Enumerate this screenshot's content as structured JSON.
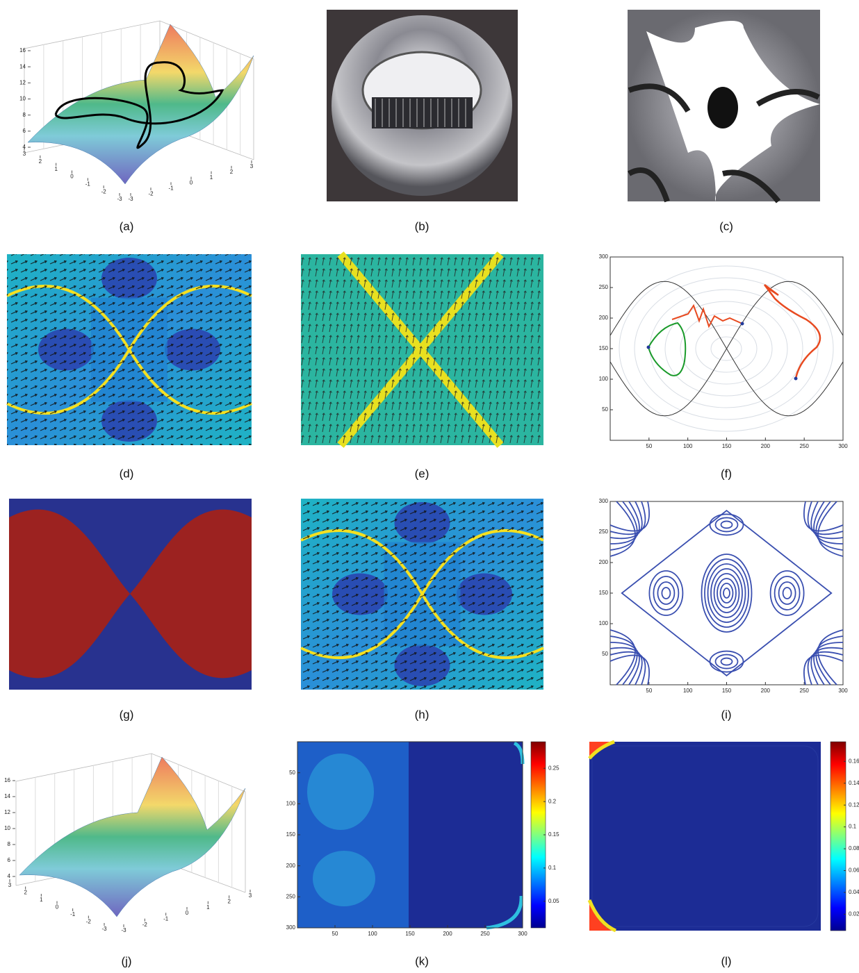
{
  "panels": [
    {
      "label": "(a)",
      "z_ticks": [
        4,
        6,
        8,
        10,
        12,
        14,
        16
      ],
      "y_ticks": [
        3,
        2,
        1,
        0,
        -1,
        -2,
        -3
      ],
      "x_ticks": [
        -3,
        -2,
        -1,
        0,
        1,
        2,
        3
      ]
    },
    {
      "label": "(b)"
    },
    {
      "label": "(c)"
    },
    {
      "label": "(d)"
    },
    {
      "label": "(e)"
    },
    {
      "label": "(f)",
      "xlim": [
        0,
        300
      ],
      "ylim": [
        0,
        300
      ],
      "xticks": [
        50,
        100,
        150,
        200,
        250,
        300
      ],
      "yticks": [
        50,
        100,
        150,
        200,
        250,
        300
      ]
    },
    {
      "label": "(g)"
    },
    {
      "label": "(h)"
    },
    {
      "label": "(i)",
      "xlim": [
        0,
        300
      ],
      "ylim": [
        0,
        300
      ],
      "xticks": [
        50,
        100,
        150,
        200,
        250,
        300
      ],
      "yticks": [
        50,
        100,
        150,
        200,
        250,
        300
      ]
    },
    {
      "label": "(j)",
      "z_ticks": [
        4,
        6,
        8,
        10,
        12,
        14,
        16
      ],
      "y_ticks": [
        3,
        2,
        1,
        0,
        -1,
        -2,
        -3
      ],
      "x_ticks": [
        -3,
        -2,
        -1,
        0,
        1,
        2,
        3
      ]
    },
    {
      "label": "(k)",
      "xlim": [
        0,
        300
      ],
      "ylim": [
        300,
        0
      ],
      "xticks": [
        50,
        100,
        150,
        200,
        250,
        300
      ],
      "yticks": [
        50,
        100,
        150,
        200,
        250,
        300
      ],
      "clim": [
        0.01,
        0.29
      ],
      "cticks": [
        0.05,
        0.1,
        0.15,
        0.2,
        0.25
      ]
    },
    {
      "label": "(l)",
      "clim": [
        0.005,
        0.178
      ],
      "cticks": [
        0.02,
        0.04,
        0.06,
        0.08,
        0.1,
        0.12,
        0.14,
        0.16
      ]
    }
  ]
}
